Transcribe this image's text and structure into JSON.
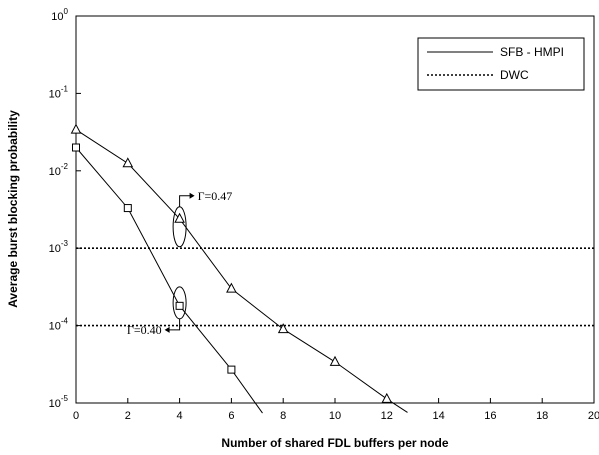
{
  "chart_data": {
    "type": "line",
    "xlabel": "Number of shared FDL buffers per node",
    "ylabel": "Average burst blocking probability",
    "xlim": [
      0,
      20
    ],
    "ylim_exponent": [
      -5,
      0
    ],
    "y_scale": "log",
    "x_ticks": [
      "0",
      "2",
      "4",
      "6",
      "8",
      "10",
      "12",
      "14",
      "16",
      "18",
      "20"
    ],
    "y_ticks": [
      {
        "base": "10",
        "exp": "0"
      },
      {
        "base": "10",
        "exp": "-1"
      },
      {
        "base": "10",
        "exp": "-2"
      },
      {
        "base": "10",
        "exp": "-3"
      },
      {
        "base": "10",
        "exp": "-4"
      },
      {
        "base": "10",
        "exp": "-5"
      }
    ],
    "grid": false,
    "legend_position": "top-right",
    "legend": [
      {
        "label": "SFB - HMPI",
        "style": "solid"
      },
      {
        "label": "DWC",
        "style": "dotted"
      }
    ],
    "series": [
      {
        "group": "SFB - HMPI",
        "marker": "triangle",
        "x": [
          0,
          2,
          4,
          6,
          8,
          10,
          12,
          12.8
        ],
        "y": [
          0.034,
          0.0125,
          0.0024,
          0.0003,
          9e-05,
          3.4e-05,
          1.13e-05,
          7.55e-06
        ]
      },
      {
        "group": "SFB - HMPI",
        "marker": "square",
        "x": [
          0,
          2,
          4,
          6,
          7.2
        ],
        "y": [
          0.02,
          0.0033,
          0.00018,
          2.7e-05,
          7.4e-06
        ]
      },
      {
        "group": "DWC",
        "marker": "none",
        "x": [
          0,
          20
        ],
        "y": [
          0.001,
          0.001
        ]
      },
      {
        "group": "DWC",
        "marker": "none",
        "x": [
          0,
          20
        ],
        "y": [
          0.0001,
          0.0001
        ]
      }
    ],
    "annotations": [
      {
        "text": "Γ=0.47",
        "series": 0,
        "point_x": 4
      },
      {
        "text": "Γ=0.40",
        "series": 1,
        "point_x": 4
      }
    ]
  }
}
